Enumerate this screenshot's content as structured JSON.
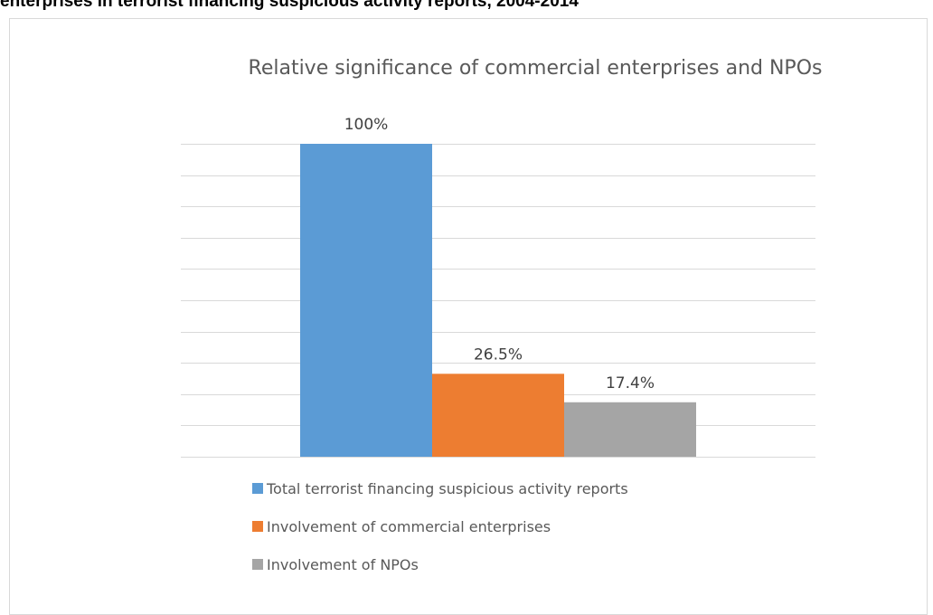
{
  "heading": "enterprises in terrorist financing suspicious activity reports, 2004-2014",
  "chart_data": {
    "type": "bar",
    "title": "Relative significance of commercial enterprises and NPOs",
    "series": [
      {
        "name": "Total terrorist financing suspicious activity reports",
        "value": 100,
        "label": "100%",
        "color": "#5b9bd5"
      },
      {
        "name": "Involvement of commercial enterprises",
        "value": 26.5,
        "label": "26.5%",
        "color": "#ed7d31"
      },
      {
        "name": "Involvement of NPOs",
        "value": 17.4,
        "label": "17.4%",
        "color": "#a5a5a5"
      }
    ],
    "ylim": [
      0,
      100
    ],
    "grid": true,
    "legend_position": "bottom"
  }
}
